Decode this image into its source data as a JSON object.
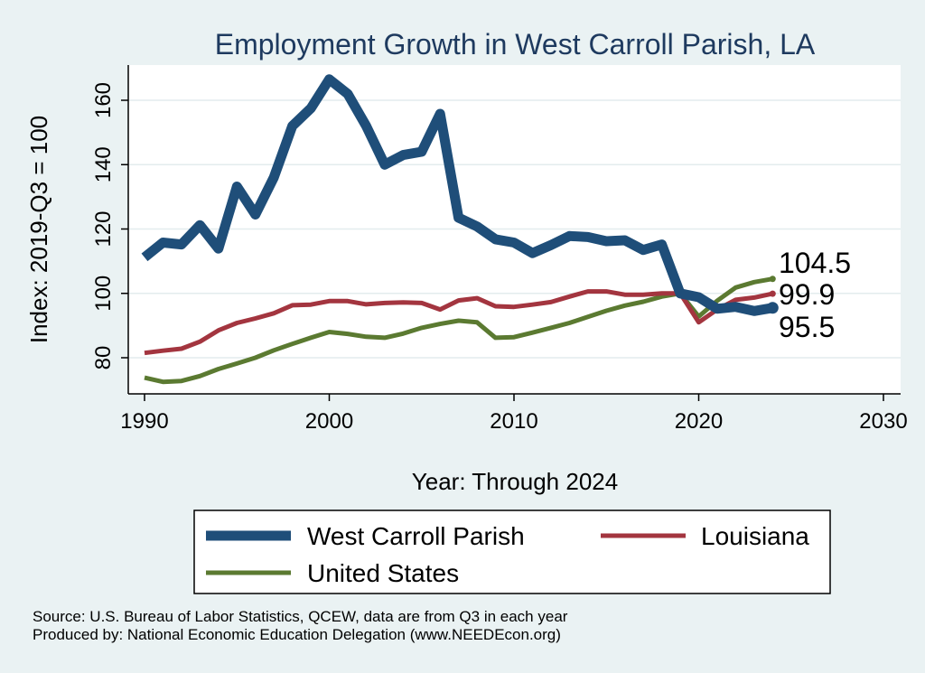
{
  "chart_data": {
    "type": "line",
    "title": "Employment Growth in West Carroll Parish, LA",
    "xlabel": "Year: Through 2024",
    "ylabel": "Index: 2019-Q3 = 100",
    "xlim": [
      1990,
      2030
    ],
    "ylim": [
      70,
      170
    ],
    "xticks": [
      1990,
      2000,
      2010,
      2020,
      2030
    ],
    "yticks": [
      80,
      100,
      120,
      140,
      160
    ],
    "grid": true,
    "x": [
      1990,
      1991,
      1992,
      1993,
      1994,
      1995,
      1996,
      1997,
      1998,
      1999,
      2000,
      2001,
      2002,
      2003,
      2004,
      2005,
      2006,
      2007,
      2008,
      2009,
      2010,
      2011,
      2012,
      2013,
      2014,
      2015,
      2016,
      2017,
      2018,
      2019,
      2020,
      2021,
      2022,
      2023,
      2024
    ],
    "series": [
      {
        "name": "West Carroll Parish",
        "color": "#1f4e79",
        "values": [
          111.2,
          115.8,
          115.2,
          121.2,
          113.9,
          133.2,
          124.5,
          136.0,
          152.0,
          157.5,
          166.5,
          162.0,
          152.0,
          140.0,
          143.0,
          144.0,
          155.8,
          123.5,
          120.8,
          116.8,
          115.8,
          112.5,
          115.0,
          117.8,
          117.5,
          116.2,
          116.5,
          113.5,
          115.2,
          100.0,
          98.8,
          95.2,
          95.8,
          94.5,
          95.5
        ],
        "end_label": "95.5"
      },
      {
        "name": "Louisiana",
        "color": "#a3353f",
        "values": [
          81.5,
          82.2,
          82.8,
          85.0,
          88.5,
          90.8,
          92.2,
          93.8,
          96.3,
          96.5,
          97.6,
          97.6,
          96.6,
          97.0,
          97.2,
          97.0,
          95.0,
          97.8,
          98.5,
          96.0,
          95.8,
          96.5,
          97.3,
          99.0,
          100.6,
          100.6,
          99.6,
          99.6,
          100.0,
          100.0,
          91.0,
          95.0,
          98.0,
          98.7,
          99.9
        ],
        "end_label": "99.9"
      },
      {
        "name": "United States",
        "color": "#5b7a31",
        "values": [
          73.8,
          72.5,
          72.8,
          74.3,
          76.5,
          78.2,
          80.0,
          82.3,
          84.3,
          86.2,
          88.0,
          87.4,
          86.5,
          86.2,
          87.5,
          89.3,
          90.5,
          91.5,
          91.0,
          86.2,
          86.4,
          87.8,
          89.3,
          90.8,
          92.7,
          94.6,
          96.2,
          97.4,
          99.0,
          100.0,
          92.8,
          97.7,
          101.8,
          103.5,
          104.5
        ],
        "end_label": "104.5"
      }
    ],
    "legend": {
      "placement": "bottom",
      "items": [
        "West Carroll Parish",
        "Louisiana",
        "United States"
      ]
    }
  },
  "source": {
    "line1": "Source: U.S. Bureau of Labor Statistics, QCEW, data are from Q3 in each year",
    "line2": "Produced by: National Economic Education Delegation (www.NEEDEcon.org)"
  },
  "colors": {
    "background": "#eaf2f3",
    "plot_background": "#ffffff",
    "gridline": "#e3ecee",
    "title": "#1e3a5f"
  }
}
